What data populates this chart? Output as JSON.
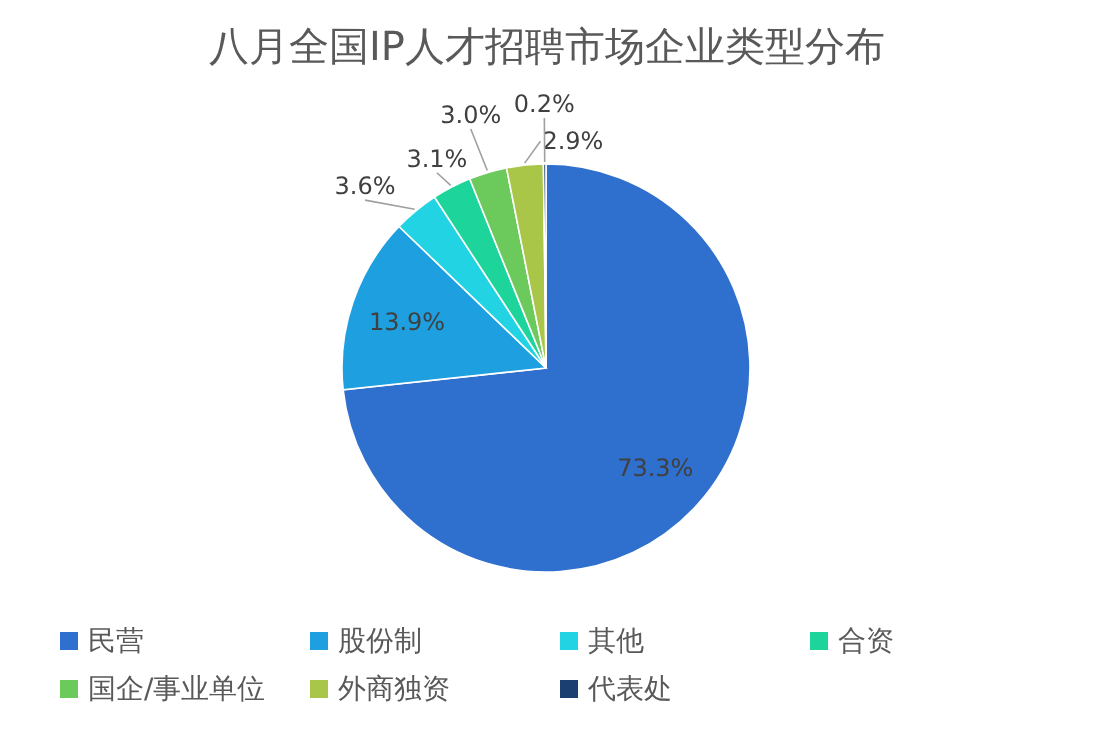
{
  "chart_data": {
    "type": "pie",
    "title": "八月全国IP人才招聘市场企业类型分布",
    "categories": [
      "民营",
      "股份制",
      "其他",
      "合资",
      "国企/事业单位",
      "外商独资",
      "代表处"
    ],
    "values": [
      73.3,
      13.9,
      3.6,
      3.1,
      3.0,
      2.9,
      0.2
    ],
    "colors": [
      "#2f6fcd",
      "#1d9fe0",
      "#22d3e3",
      "#1dd49b",
      "#6cc95b",
      "#a9c649",
      "#1b3f70"
    ],
    "value_labels": [
      "73.3%",
      "13.9%",
      "3.6%",
      "3.1%",
      "3.0%",
      "2.9%",
      "0.2%"
    ],
    "legend": "bottom"
  }
}
